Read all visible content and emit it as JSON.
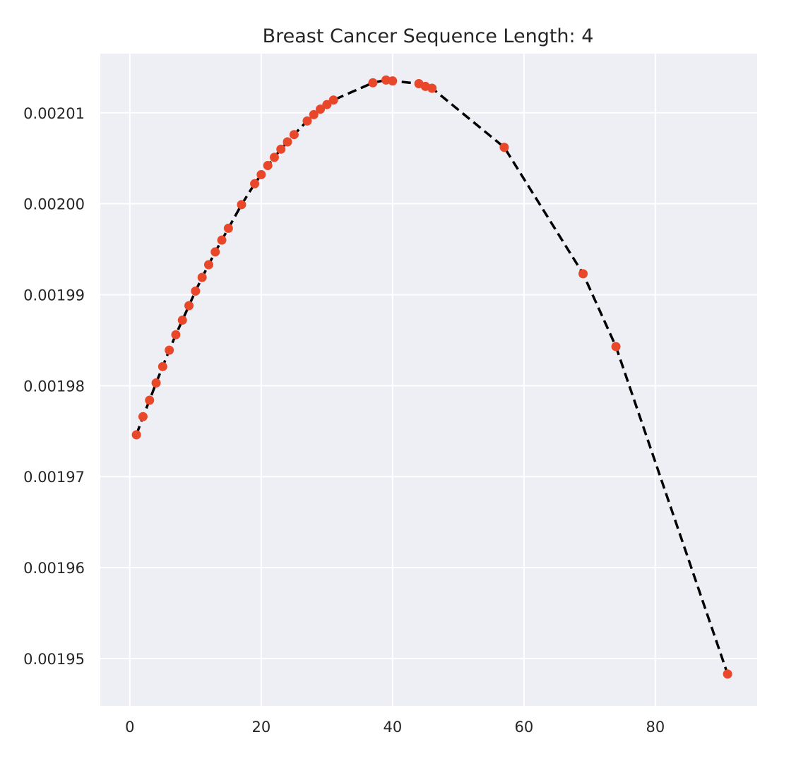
{
  "chart_data": {
    "type": "line",
    "title": "Breast Cancer Sequence Length: 4",
    "xlabel": "",
    "ylabel": "",
    "xlim": [
      -4.5,
      95.5
    ],
    "ylim": [
      0.0019448,
      0.0020165
    ],
    "xticks": [
      0,
      20,
      40,
      60,
      80
    ],
    "xtick_labels": [
      "0",
      "20",
      "40",
      "60",
      "80"
    ],
    "yticks": [
      0.00195,
      0.00196,
      0.00197,
      0.00198,
      0.00199,
      0.002,
      0.00201
    ],
    "ytick_labels": [
      "0.00195",
      "0.00196",
      "0.00197",
      "0.00198",
      "0.00199",
      "0.00200",
      "0.00201"
    ],
    "grid": true,
    "background_color": "#eeeef5",
    "grid_color": "#ffffff",
    "line_color": "#000000",
    "line_style": "dashed",
    "marker_color": "#e8472a",
    "series": [
      {
        "x": [
          1,
          2,
          3,
          4,
          5,
          6,
          7,
          8,
          9,
          10,
          11,
          12,
          13,
          14,
          15,
          17,
          19,
          20,
          21,
          22,
          23,
          24,
          25,
          27,
          28,
          29,
          30,
          31,
          37,
          39,
          40,
          44,
          45,
          46,
          57,
          69,
          74,
          91
        ],
        "y": [
          0.0019746,
          0.0019766,
          0.0019784,
          0.0019803,
          0.0019821,
          0.0019839,
          0.0019856,
          0.0019872,
          0.0019888,
          0.0019904,
          0.0019919,
          0.0019933,
          0.0019947,
          0.001996,
          0.0019973,
          0.0019999,
          0.0020022,
          0.0020032,
          0.0020042,
          0.0020051,
          0.002006,
          0.0020068,
          0.0020076,
          0.0020091,
          0.0020098,
          0.0020104,
          0.0020109,
          0.0020114,
          0.0020133,
          0.0020136,
          0.0020135,
          0.0020132,
          0.0020129,
          0.0020127,
          0.0020062,
          0.0019923,
          0.0019843,
          0.0019483
        ]
      }
    ]
  }
}
